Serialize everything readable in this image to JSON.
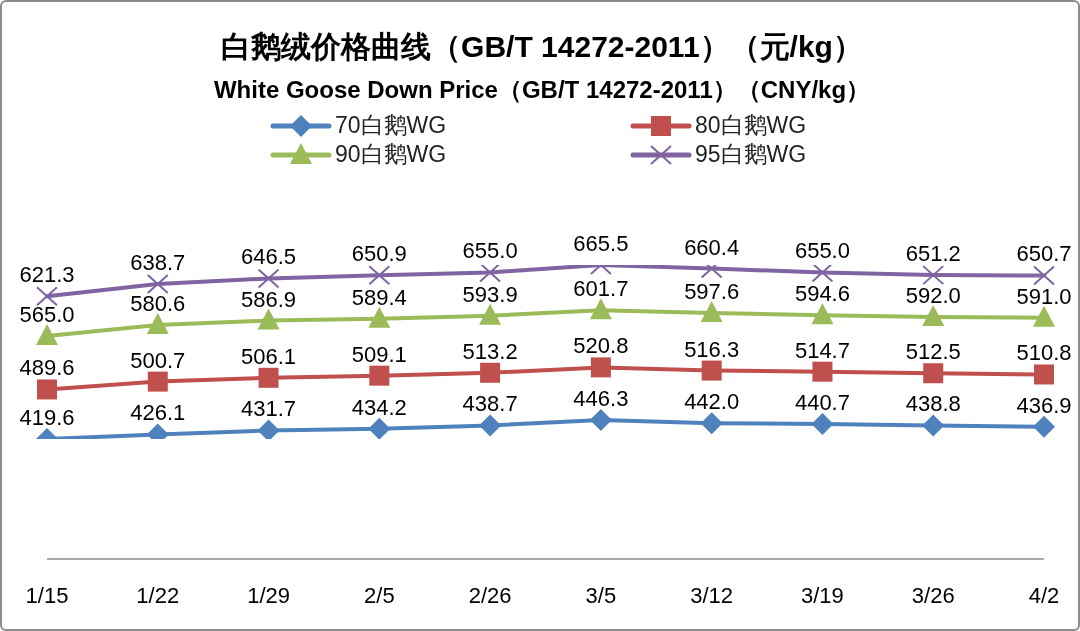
{
  "chart_data": {
    "type": "line",
    "title": "白鹅绒价格曲线（GB/T 14272-2011）（元/kg）",
    "subtitle": "White Goose Down Price（GB/T 14272-2011）（CNY/kg）",
    "categories": [
      "1/15",
      "1/22",
      "1/29",
      "2/5",
      "2/26",
      "3/5",
      "3/12",
      "3/19",
      "3/26",
      "4/2"
    ],
    "series": [
      {
        "name": "70白鹅WG",
        "color": "#4f81bd",
        "marker": "diamond",
        "values": [
          419.6,
          426.1,
          431.7,
          434.2,
          438.7,
          446.3,
          442.0,
          440.7,
          438.8,
          436.9
        ],
        "value_labels": [
          "419.6",
          "426.1",
          "431.7",
          "434.2",
          "438.7",
          "446.3",
          "442.0",
          "440.7",
          "438.8",
          "436.9"
        ]
      },
      {
        "name": "80白鹅WG",
        "color": "#c0504d",
        "marker": "square",
        "values": [
          489.6,
          500.7,
          506.1,
          509.1,
          513.2,
          520.8,
          516.3,
          514.7,
          512.5,
          510.8
        ],
        "value_labels": [
          "489.6",
          "500.7",
          "506.1",
          "509.1",
          "513.2",
          "520.8",
          "516.3",
          "514.7",
          "512.5",
          "510.8"
        ]
      },
      {
        "name": "90白鹅WG",
        "color": "#9bbb59",
        "marker": "triangle",
        "values": [
          565.0,
          580.6,
          586.9,
          589.4,
          593.9,
          601.7,
          597.6,
          594.6,
          592.0,
          591.0
        ],
        "value_labels": [
          "565.0",
          "580.6",
          "586.9",
          "589.4",
          "593.9",
          "601.7",
          "597.6",
          "594.6",
          "592.0",
          "591.0"
        ]
      },
      {
        "name": "95白鹅WG",
        "color": "#8064a2",
        "marker": "cross",
        "values": [
          621.3,
          638.7,
          646.5,
          650.9,
          655.0,
          665.5,
          660.4,
          655.0,
          651.2,
          650.7
        ],
        "value_labels": [
          "621.3",
          "638.7",
          "646.5",
          "650.9",
          "655.0",
          "665.5",
          "660.4",
          "655.0",
          "651.2",
          "650.7"
        ]
      }
    ],
    "tick_labels": "x",
    "legend": "top",
    "line_style": "solid"
  }
}
